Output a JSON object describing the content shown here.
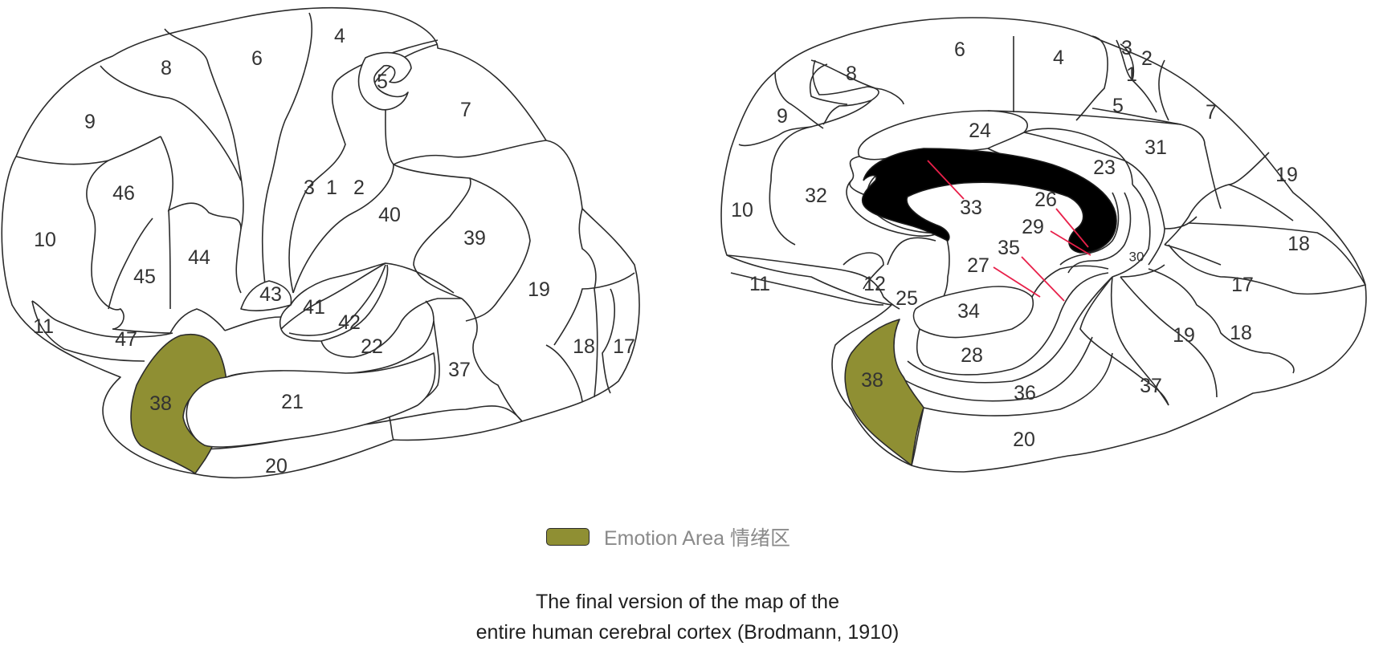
{
  "colors": {
    "emotion_area": "#8f8f33",
    "outline": "#2b2b2b",
    "corpus_callosum": "#000000",
    "pointer": "#e8204a"
  },
  "lateral_labels": {
    "a4": "4",
    "a6": "6",
    "a8": "8",
    "a9": "9",
    "a5": "5",
    "a7": "7",
    "a46": "46",
    "a3": "3",
    "a1": "1",
    "a2": "2",
    "a40": "40",
    "a39": "39",
    "a10": "10",
    "a44": "44",
    "a45": "45",
    "a43": "43",
    "a41": "41",
    "a42": "42",
    "a19": "19",
    "a11": "11",
    "a47": "47",
    "a22": "22",
    "a18": "18",
    "a17": "17",
    "a37": "37",
    "a38": "38",
    "a21": "21",
    "a20": "20"
  },
  "medial_labels": {
    "a6": "6",
    "a4": "4",
    "a3": "3",
    "a2": "2",
    "a1": "1",
    "a8": "8",
    "a5": "5",
    "a7": "7",
    "a9": "9",
    "a24": "24",
    "a31": "31",
    "a23": "23",
    "a19a": "19",
    "a32": "32",
    "a33": "33",
    "a26": "26",
    "a10": "10",
    "a29": "29",
    "a18a": "18",
    "a35": "35",
    "a30": "30",
    "a27": "27",
    "a17": "17",
    "a11": "11",
    "a12": "12",
    "a25": "25",
    "a34": "34",
    "a19b": "19",
    "a18b": "18",
    "a28": "28",
    "a38": "38",
    "a37": "37",
    "a36": "36",
    "a20": "20"
  },
  "legend": {
    "label": "Emotion Area  情绪区"
  },
  "caption": {
    "line1": "The final version of the map of the",
    "line2": "entire human cerebral cortex (Brodmann, 1910)"
  }
}
